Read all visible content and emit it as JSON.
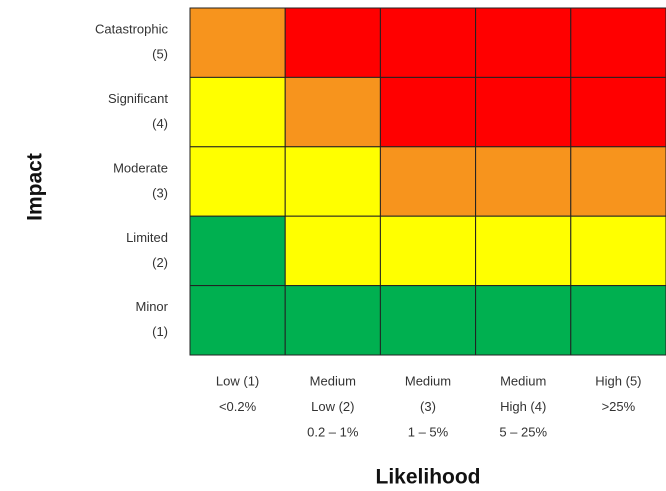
{
  "y_axis_title": "Impact",
  "x_axis_title": "Likelihood",
  "rows": [
    {
      "label": [
        "Catastrophic",
        "(5)"
      ]
    },
    {
      "label": [
        "Significant",
        "(4)"
      ]
    },
    {
      "label": [
        "Moderate",
        "(3)"
      ]
    },
    {
      "label": [
        "Limited",
        "(2)"
      ]
    },
    {
      "label": [
        "Minor",
        "(1)"
      ]
    }
  ],
  "columns": [
    {
      "label": [
        "Low (1)",
        "<0.2%"
      ]
    },
    {
      "label": [
        "Medium",
        "Low (2)",
        "0.2 – 1%"
      ]
    },
    {
      "label": [
        "Medium",
        "(3)",
        "1 – 5%"
      ]
    },
    {
      "label": [
        "Medium",
        "High (4)",
        "5 – 25%"
      ]
    },
    {
      "label": [
        "High (5)",
        ">25%"
      ]
    }
  ],
  "cells": [
    [
      "#f7941d",
      "#ff0000",
      "#ff0000",
      "#ff0000",
      "#ff0000"
    ],
    [
      "#ffff00",
      "#f7941d",
      "#ff0000",
      "#ff0000",
      "#ff0000"
    ],
    [
      "#ffff00",
      "#ffff00",
      "#f7941d",
      "#f7941d",
      "#f7941d"
    ],
    [
      "#00b050",
      "#ffff00",
      "#ffff00",
      "#ffff00",
      "#ffff00"
    ],
    [
      "#00b050",
      "#00b050",
      "#00b050",
      "#00b050",
      "#00b050"
    ]
  ]
}
